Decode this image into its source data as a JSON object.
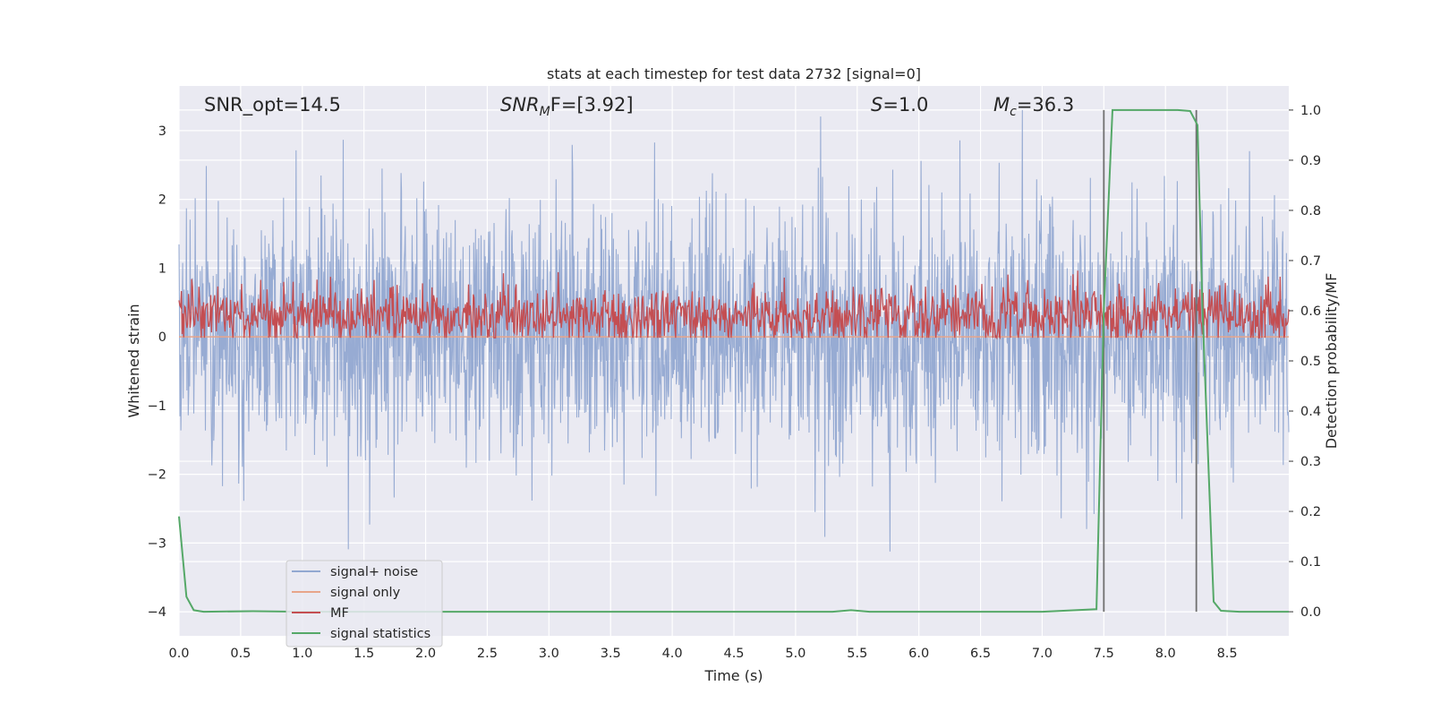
{
  "chart_data": {
    "type": "line",
    "title": "stats at each timestep for test data 2732 [signal=0]",
    "xlabel": "Time (s)",
    "ylabel": "Whitened strain",
    "y2label": "Detection probability/MF",
    "xlim": [
      0,
      9.0
    ],
    "ylim": [
      -4.35,
      3.65
    ],
    "y2lim": [
      -0.048,
      1.048
    ],
    "grid": true,
    "x_ticks": [
      0.0,
      0.5,
      1.0,
      1.5,
      2.0,
      2.5,
      3.0,
      3.5,
      4.0,
      4.5,
      5.0,
      5.5,
      6.0,
      6.5,
      7.0,
      7.5,
      8.0,
      8.5
    ],
    "x_tick_labels": [
      "0.0",
      "0.5",
      "1.0",
      "1.5",
      "2.0",
      "2.5",
      "3.0",
      "3.5",
      "4.0",
      "4.5",
      "5.0",
      "5.5",
      "6.0",
      "6.5",
      "7.0",
      "7.5",
      "8.0",
      "8.5"
    ],
    "y_ticks": [
      3,
      2,
      1,
      0,
      -1,
      -2,
      -3,
      -4
    ],
    "y_tick_labels": [
      "3",
      "2",
      "1",
      "0",
      "−1",
      "−2",
      "−3",
      "−4"
    ],
    "y2_ticks": [
      1.0,
      0.9,
      0.8,
      0.7,
      0.6,
      0.5,
      0.4,
      0.3,
      0.2,
      0.1,
      0.0
    ],
    "y2_tick_labels": [
      "1.0",
      "0.9",
      "0.8",
      "0.7",
      "0.6",
      "0.5",
      "0.4",
      "0.3",
      "0.2",
      "0.1",
      "0.0"
    ],
    "annotations": {
      "snr_opt": "SNR_opt=14.5",
      "snr_mf_main": "SNR",
      "snr_mf_sub": "M",
      "snr_mf_tail": "F=[3.92]",
      "s_main": "S",
      "s_tail": "=1.0",
      "mc_main": "M",
      "mc_sub": "c",
      "mc_tail": "=36.3"
    },
    "legend_position": "lower-left",
    "series": [
      {
        "name": "signal+ noise",
        "color": "#92a8d1",
        "description_range": [
          -4.0,
          3.3
        ],
        "approx_envelope": {
          "mean": 0.05,
          "std": 0.95
        }
      },
      {
        "name": "signal only",
        "color": "#e8a58a",
        "x": [
          0.0,
          9.0
        ],
        "y": [
          0.0,
          0.0
        ]
      },
      {
        "name": "MF",
        "color": "#c44e52",
        "approx_envelope": {
          "mean_prob": 0.59,
          "min_prob": 0.546,
          "max_prob": 0.68
        }
      },
      {
        "name": "signal statistics",
        "color": "#55a868",
        "axis": "right",
        "x": [
          0.0,
          0.06,
          0.12,
          0.2,
          0.6,
          1.0,
          2.0,
          3.0,
          4.0,
          5.0,
          5.3,
          5.45,
          5.6,
          6.0,
          7.0,
          7.44,
          7.5,
          7.57,
          7.9,
          8.1,
          8.2,
          8.26,
          8.3,
          8.39,
          8.45,
          8.6,
          9.0
        ],
        "y": [
          0.19,
          0.03,
          0.003,
          0.0,
          0.001,
          0.0,
          0.0,
          0.0,
          0.0,
          0.0,
          0.0,
          0.003,
          0.0,
          0.0,
          0.0,
          0.005,
          0.6,
          1.0,
          1.0,
          1.0,
          0.998,
          0.97,
          0.6,
          0.02,
          0.002,
          0.0,
          0.0
        ]
      }
    ],
    "vlines": [
      7.5,
      8.25
    ],
    "vline_color": "#707070"
  }
}
